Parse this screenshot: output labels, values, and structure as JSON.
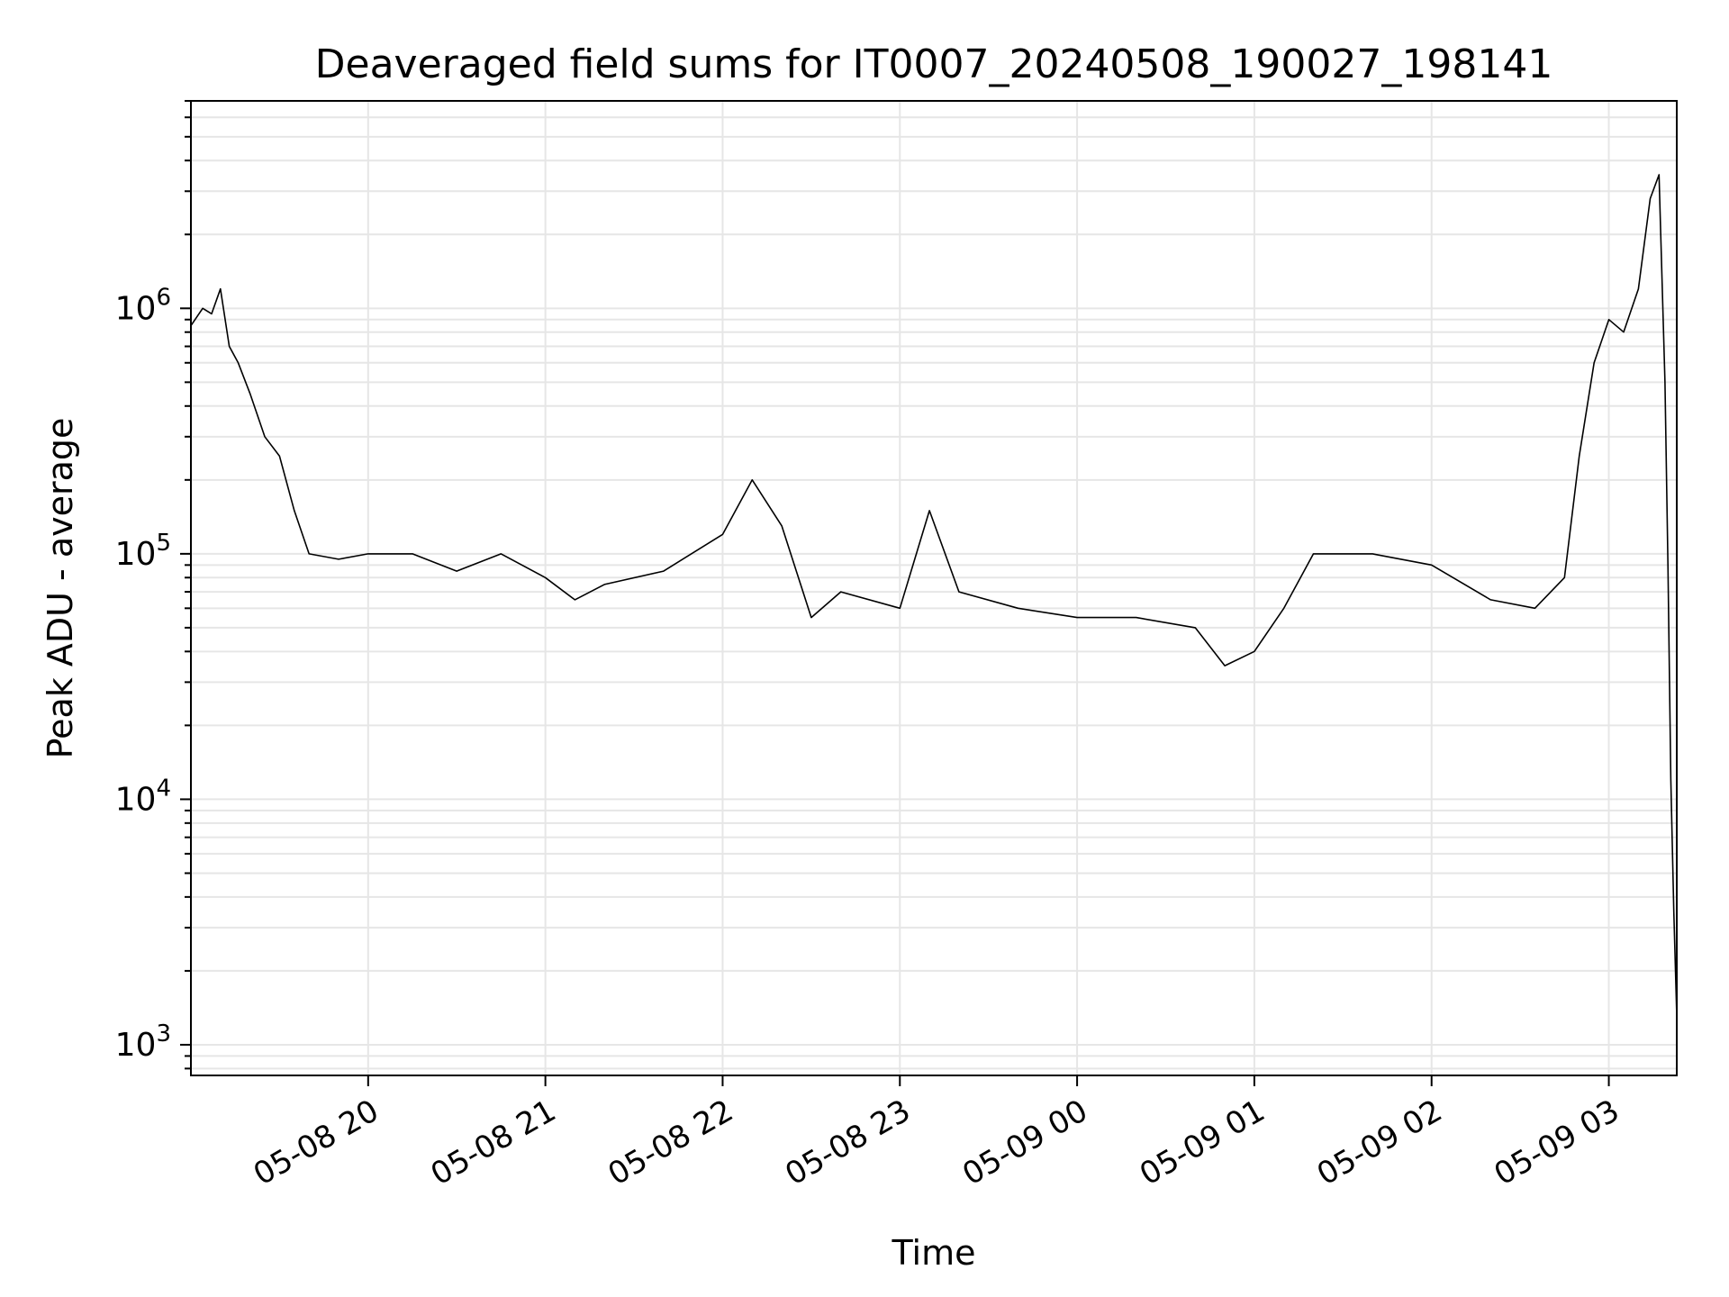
{
  "chart_data": {
    "type": "line",
    "title": "Deaveraged field sums for IT0007_20240508_190027_198141",
    "xlabel": "Time",
    "ylabel": "Peak ADU - average",
    "yscale": "log",
    "grid": "on (major and minor)",
    "colors": {
      "line": "#000000",
      "grid": "#e6e6e6",
      "axes": "#000000"
    },
    "x_ticks": [
      "05-08 20",
      "05-08 21",
      "05-08 22",
      "05-08 23",
      "05-09 00",
      "05-09 01",
      "05-09 02",
      "05-09 03"
    ],
    "xlim": [
      "2024-05-08 19:00",
      "2024-05-09 03:23"
    ],
    "y_ticks": [
      {
        "value": 1000,
        "base": "10",
        "exp": "3"
      },
      {
        "value": 10000,
        "base": "10",
        "exp": "4"
      },
      {
        "value": 100000,
        "base": "10",
        "exp": "5"
      },
      {
        "value": 1000000,
        "base": "10",
        "exp": "6"
      }
    ],
    "ylim": [
      750,
      7000000
    ],
    "series": [
      {
        "points": [
          [
            "2024-05-08 19:00",
            850000
          ],
          [
            "2024-05-08 19:04",
            1000000
          ],
          [
            "2024-05-08 19:07",
            950000
          ],
          [
            "2024-05-08 19:10",
            1200000
          ],
          [
            "2024-05-08 19:13",
            700000
          ],
          [
            "2024-05-08 19:16",
            600000
          ],
          [
            "2024-05-08 19:20",
            450000
          ],
          [
            "2024-05-08 19:25",
            300000
          ],
          [
            "2024-05-08 19:30",
            250000
          ],
          [
            "2024-05-08 19:35",
            150000
          ],
          [
            "2024-05-08 19:40",
            100000
          ],
          [
            "2024-05-08 19:50",
            95000
          ],
          [
            "2024-05-08 20:00",
            100000
          ],
          [
            "2024-05-08 20:15",
            100000
          ],
          [
            "2024-05-08 20:30",
            85000
          ],
          [
            "2024-05-08 20:45",
            100000
          ],
          [
            "2024-05-08 21:00",
            80000
          ],
          [
            "2024-05-08 21:10",
            65000
          ],
          [
            "2024-05-08 21:20",
            75000
          ],
          [
            "2024-05-08 21:40",
            85000
          ],
          [
            "2024-05-08 22:00",
            120000
          ],
          [
            "2024-05-08 22:10",
            200000
          ],
          [
            "2024-05-08 22:20",
            130000
          ],
          [
            "2024-05-08 22:30",
            55000
          ],
          [
            "2024-05-08 22:40",
            70000
          ],
          [
            "2024-05-08 23:00",
            60000
          ],
          [
            "2024-05-08 23:10",
            150000
          ],
          [
            "2024-05-08 23:20",
            70000
          ],
          [
            "2024-05-08 23:40",
            60000
          ],
          [
            "2024-05-09 00:00",
            55000
          ],
          [
            "2024-05-09 00:20",
            55000
          ],
          [
            "2024-05-09 00:40",
            50000
          ],
          [
            "2024-05-09 00:50",
            35000
          ],
          [
            "2024-05-09 01:00",
            40000
          ],
          [
            "2024-05-09 01:10",
            60000
          ],
          [
            "2024-05-09 01:20",
            100000
          ],
          [
            "2024-05-09 01:40",
            100000
          ],
          [
            "2024-05-09 02:00",
            90000
          ],
          [
            "2024-05-09 02:20",
            65000
          ],
          [
            "2024-05-09 02:35",
            60000
          ],
          [
            "2024-05-09 02:45",
            80000
          ],
          [
            "2024-05-09 02:50",
            250000
          ],
          [
            "2024-05-09 02:55",
            600000
          ],
          [
            "2024-05-09 03:00",
            900000
          ],
          [
            "2024-05-09 03:05",
            800000
          ],
          [
            "2024-05-09 03:10",
            1200000
          ],
          [
            "2024-05-09 03:14",
            2800000
          ],
          [
            "2024-05-09 03:17",
            3500000
          ],
          [
            "2024-05-09 03:19",
            500000
          ],
          [
            "2024-05-09 03:20",
            90000
          ],
          [
            "2024-05-09 03:21",
            12000
          ],
          [
            "2024-05-09 03:22",
            3500
          ],
          [
            "2024-05-09 03:23",
            1300
          ]
        ]
      }
    ]
  }
}
